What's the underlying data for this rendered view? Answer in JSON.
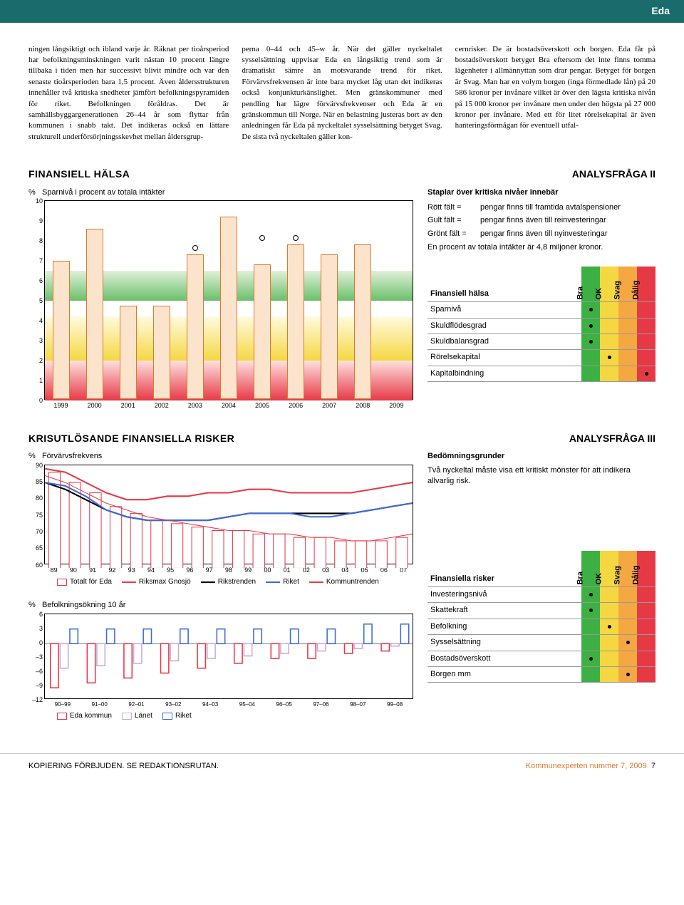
{
  "header": {
    "title": "Eda"
  },
  "body_text": {
    "col1": "ningen långsiktigt och ibland varje år. Räknat per tioårsperiod har befolkningsminskningen varit nästan 10 procent längre tillbaka i tiden men har successivt blivit mindre och var den senaste tioårsperioden bara 1,5 procent. Även åldersstrukturen innehåller två kritiska snedheter jämfört befolkningspyramiden för riket. Befolkningen föråldras. Det är samhällsbyggargenerationen 26–44 år som flyttar från kommunen i snabb takt. Det indikeras också en lättare strukturell underförsörjningsskevhet mellan åldersgrup-",
    "col2": "perna 0–44 och 45–w år. När det gäller nyckeltalet sysselsättning uppvisar Eda en långsiktig trend som är dramatiskt sämre än motsvarande trend för riket. Förvärvsfrekvensen är inte bara mycket låg utan det indikeras också konjunkturkänslighet. Men gränskommuner med pendling har lägre förvärvsfrekvenser och Eda är en gränskommun till Norge. När en belastning justeras bort av den anledningen får Eda på nyckeltalet sysselsättning betyget Svag. De sista två nyckeltalen gäller kon-",
    "col3": "cernrisker. De är bostadsöverskott och borgen. Eda får på bostadsöverskott betyget Bra eftersom det inte finns tomma lägenheter i allmännyttan som drar pengar. Betyget för borgen är Svag. Man har en volym borgen (inga förmedlade lån) på 20 586 kronor per invånare vilket är över den lägsta kritiska nivån på 15 000 kronor per invånare men under den högsta på 27 000 kronor per invånare. Med ett för litet rörelsekapital är även hanteringsförmågan för eventuell utfal-"
  },
  "sections": {
    "s2": {
      "title": "FINANSIELL HÄLSA",
      "label": "ANALYSFRÅGA II"
    },
    "s3": {
      "title": "KRISUTLÖSANDE FINANSIELLA RISKER",
      "label": "ANALYSFRÅGA III"
    }
  },
  "chart1": {
    "title": "Sparnivå i procent av totala intäkter",
    "ylabel": "%",
    "ymin": 0,
    "ymax": 10,
    "yticks": [
      10,
      9,
      8,
      7,
      6,
      5,
      4,
      3,
      2,
      1,
      0
    ],
    "years": [
      "1999",
      "2000",
      "2001",
      "2002",
      "2003",
      "2004",
      "2005",
      "2006",
      "2007",
      "2008",
      "2009"
    ],
    "values": [
      7.0,
      8.6,
      4.7,
      4.7,
      7.3,
      9.2,
      6.8,
      7.8,
      7.3,
      7.8,
      null
    ],
    "markers": [
      null,
      null,
      null,
      null,
      7.5,
      null,
      8.0,
      8.0,
      null,
      null,
      null
    ],
    "bar_color": "#fce3cc",
    "bar_border": "#d97a2e",
    "band_green": {
      "from": 5,
      "to": 6.5
    },
    "band_yellow": {
      "from": 2,
      "to": 4.2
    },
    "band_red": {
      "from": 0,
      "to": 2
    }
  },
  "info1": {
    "heading": "Staplar över kritiska nivåer innebär",
    "rows": [
      {
        "k": "Rött fält =",
        "v": "pengar finns till framtida avtalspensioner"
      },
      {
        "k": "Gult fält =",
        "v": "pengar finns även till reinvesteringar"
      },
      {
        "k": "Grönt fält =",
        "v": "pengar finns även till nyinvesteringar"
      }
    ],
    "note": "En procent av totala intäkter är 4,8 miljoner kronor."
  },
  "ratings": {
    "cols": [
      "Bra",
      "OK",
      "Svag",
      "Dålig"
    ],
    "table1": {
      "title": "Finansiell hälsa",
      "rows": [
        {
          "name": "Sparnivå",
          "rating": 0
        },
        {
          "name": "Skuldflödesgrad",
          "rating": 0
        },
        {
          "name": "Skuldbalansgrad",
          "rating": 0
        },
        {
          "name": "Rörelsekapital",
          "rating": 1
        },
        {
          "name": "Kapitalbindning",
          "rating": 3
        }
      ]
    },
    "table2": {
      "title": "Finansiella risker",
      "rows": [
        {
          "name": "Investeringsnivå",
          "rating": 0
        },
        {
          "name": "Skattekraft",
          "rating": 0
        },
        {
          "name": "Befolkning",
          "rating": 1
        },
        {
          "name": "Sysselsättning",
          "rating": 2
        },
        {
          "name": "Bostadsöverskott",
          "rating": 0
        },
        {
          "name": "Borgen mm",
          "rating": 2
        }
      ]
    }
  },
  "chart2": {
    "title": "Förvärvsfrekvens",
    "ylabel": "%",
    "yticks": [
      90,
      85,
      80,
      75,
      70,
      65,
      60
    ],
    "years": [
      "89",
      "90",
      "91",
      "92",
      "93",
      "94",
      "95",
      "96",
      "97",
      "98",
      "99",
      "00",
      "01",
      "02",
      "03",
      "04",
      "05",
      "06",
      "07"
    ],
    "series": {
      "eda": {
        "label": "Totalt för Eda",
        "color": "#e63946",
        "style": "bar",
        "data": [
          88,
          85,
          82,
          78,
          76,
          74,
          73,
          72,
          71,
          71,
          70,
          70,
          69,
          69,
          68,
          68,
          68,
          69,
          70
        ]
      },
      "gnosjo": {
        "label": "Riksmax Gnosjö",
        "color": "#e63946",
        "style": "line",
        "data": [
          89,
          88,
          85,
          82,
          80,
          80,
          81,
          81,
          82,
          82,
          83,
          83,
          82,
          82,
          82,
          82,
          83,
          84,
          85
        ]
      },
      "rikstrenden": {
        "label": "Rikstrenden",
        "color": "#000",
        "style": "line",
        "data": [
          85,
          83,
          80,
          77,
          75,
          74,
          74,
          74,
          74,
          75,
          76,
          76,
          76,
          76,
          76,
          76,
          77,
          78,
          79
        ]
      },
      "riket": {
        "label": "Riket",
        "color": "#3a6bd9",
        "style": "line",
        "data": [
          85,
          84,
          81,
          77,
          75,
          74,
          74,
          74,
          74,
          75,
          76,
          76,
          76,
          75,
          75,
          76,
          77,
          78,
          79
        ]
      },
      "kommuntrenden": {
        "label": "Kommuntrenden",
        "color": "#e63946",
        "style": "line-thin",
        "data": [
          87,
          85,
          82,
          79,
          77,
          75,
          74,
          73,
          72,
          71,
          71,
          70,
          70,
          69,
          69,
          68,
          68,
          69,
          70
        ]
      }
    }
  },
  "chart3": {
    "title": "Befolkningsökning 10 år",
    "ylabel": "%",
    "yticks": [
      6,
      3,
      0,
      -3,
      -6,
      -9,
      -12
    ],
    "periods": [
      "90–99",
      "91–00",
      "92–01",
      "93–02",
      "94–03",
      "95–04",
      "96–05",
      "97–06",
      "98–07",
      "99–08"
    ],
    "series": {
      "eda": {
        "label": "Eda kommun",
        "color": "#e63946",
        "data": [
          -9,
          -8,
          -7,
          -6,
          -5,
          -4,
          -3,
          -3,
          -2,
          -1.5
        ]
      },
      "lanet": {
        "label": "Länet",
        "color": "#c9a9d9",
        "data": [
          -5,
          -4.5,
          -4,
          -3.5,
          -3,
          -2.5,
          -2,
          -1.5,
          -1,
          -0.5
        ]
      },
      "riket": {
        "label": "Riket",
        "color": "#3a6bd9",
        "data": [
          3,
          3,
          3,
          3,
          3,
          3,
          3,
          3,
          4,
          4
        ]
      }
    }
  },
  "info3": {
    "heading": "Bedömningsgrunder",
    "text": "Två nyckeltal måste visa ett kritiskt mönster för att indikera allvarlig risk."
  },
  "footer": {
    "left": "KOPIERING FÖRBJUDEN. SE REDAKTIONSRUTAN.",
    "right": "Kommunexperten nummer 7, 2009",
    "page": "7"
  }
}
